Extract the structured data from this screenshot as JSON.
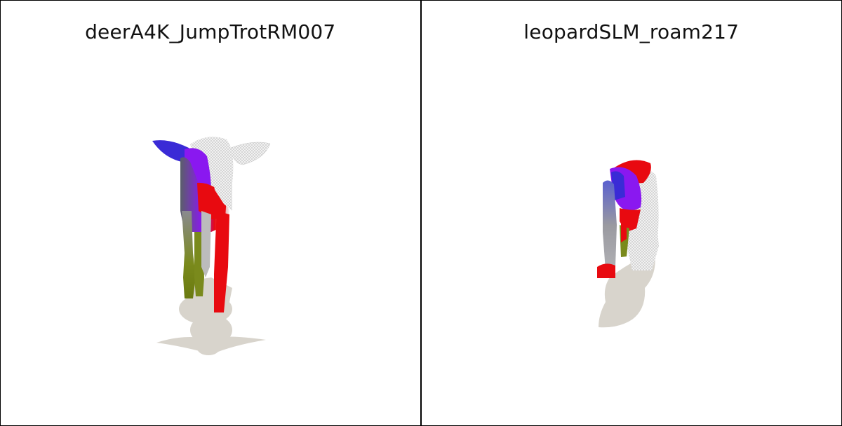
{
  "panels": [
    {
      "title": "deerA4K_JumpTrotRM007",
      "subject": "deer-render"
    },
    {
      "title": "leopardSLM_roam217",
      "subject": "leopard-render"
    }
  ],
  "colors": {
    "shadow": "#d8d4cc",
    "mesh_white": "#eeeeee",
    "blue": "#3a2bd6",
    "purple": "#8a18f0",
    "red": "#e80a10",
    "olive": "#7a8a1c",
    "grey": "#8a8a90"
  }
}
